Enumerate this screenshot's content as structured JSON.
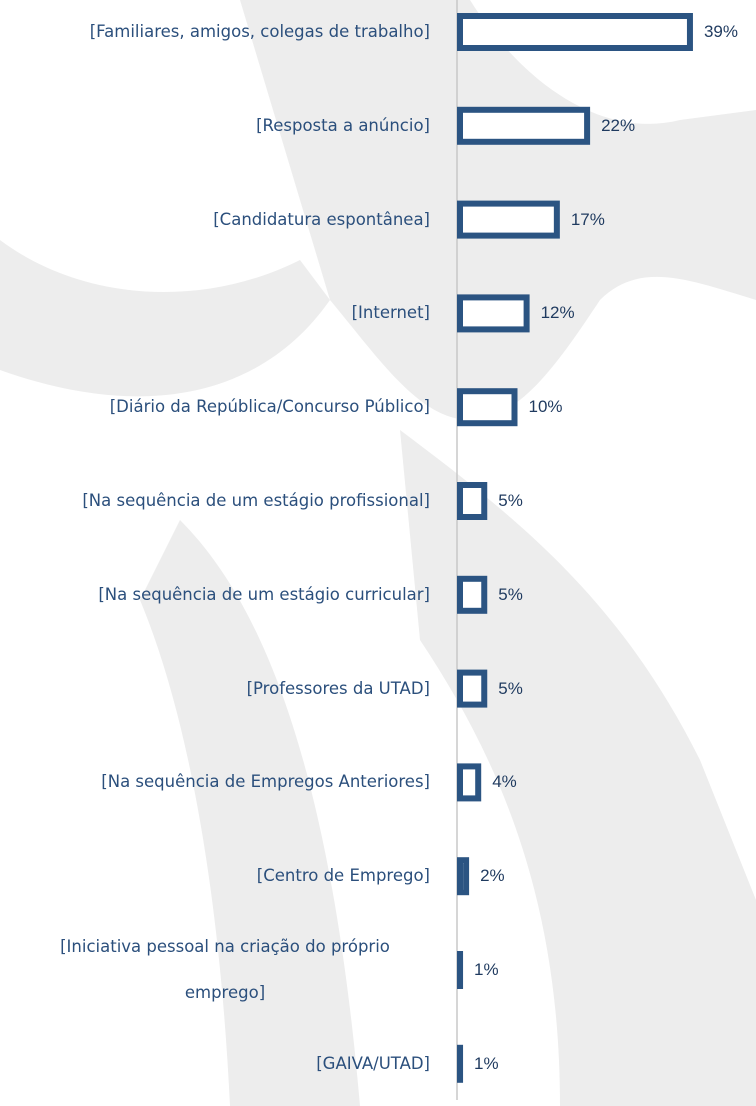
{
  "chart_data": {
    "type": "bar",
    "orientation": "horizontal",
    "categories": [
      "[Familiares, amigos, colegas de trabalho]",
      "[Resposta a anúncio]",
      "[Candidatura espontânea]",
      "[Internet]",
      "[Diário da República/Concurso Público]",
      "[Na sequência de um estágio profissional]",
      "[Na sequência de um estágio curricular]",
      "[Professores da UTAD]",
      "[Na sequência de Empregos Anteriores]",
      "[Centro de Emprego]",
      "[Iniciativa pessoal na criação do próprio emprego]",
      "[GAIVA/UTAD]"
    ],
    "values": [
      39,
      22,
      17,
      12,
      10,
      5,
      5,
      5,
      4,
      2,
      1,
      1
    ],
    "value_labels": [
      "39%",
      "22%",
      "17%",
      "12%",
      "10%",
      "5%",
      "5%",
      "5%",
      "4%",
      "2%",
      "1%",
      "1%"
    ],
    "color": "#2b5482"
  }
}
